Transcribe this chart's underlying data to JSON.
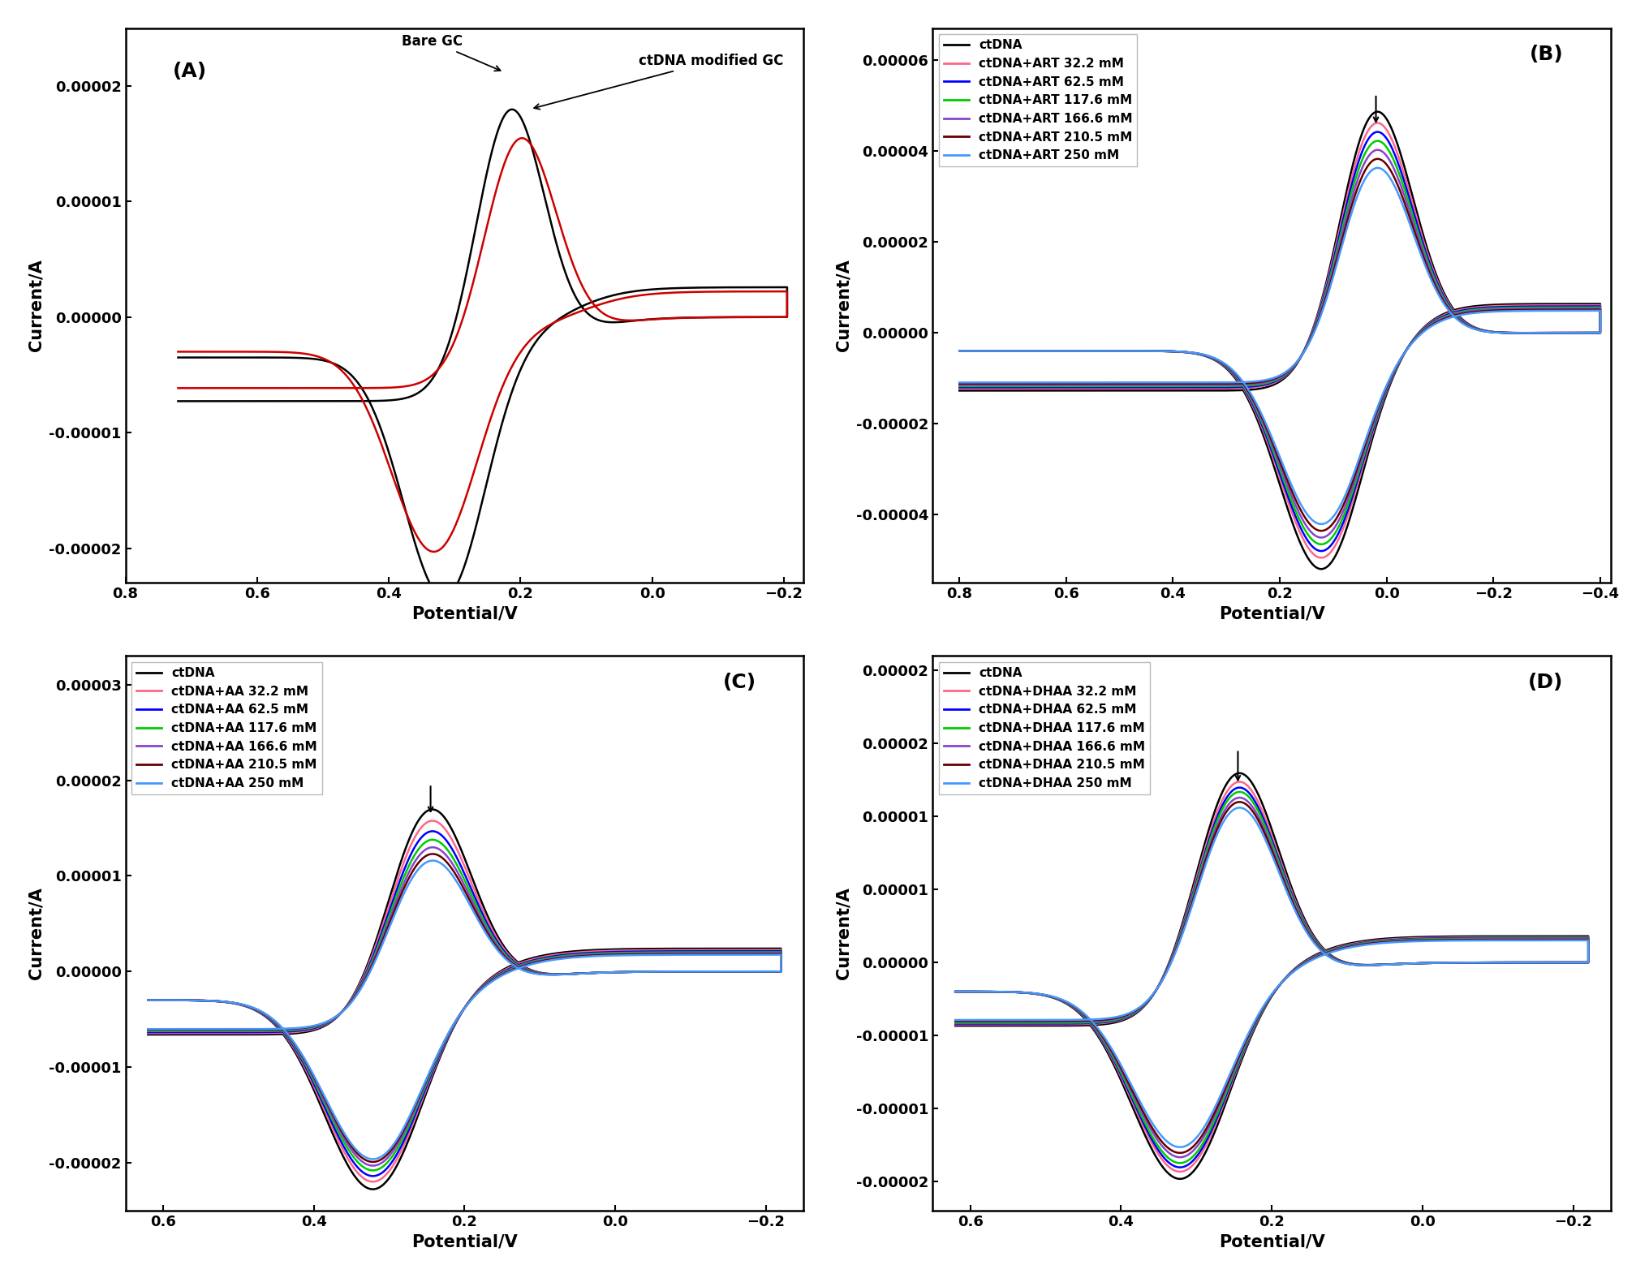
{
  "panel_A": {
    "label": "(A)",
    "xlabel": "Potential/V",
    "ylabel": "Current/A",
    "xlim": [
      0.78,
      -0.23
    ],
    "ylim": [
      -2.3e-05,
      2.5e-05
    ],
    "yticks": [
      -2e-05,
      -1e-05,
      0.0,
      1e-05,
      2e-05
    ],
    "xticks": [
      0.8,
      0.6,
      0.4,
      0.2,
      0.0,
      -0.2
    ],
    "annotation1": "Bare GC",
    "annotation2": "ctDNA modified GC"
  },
  "panel_B": {
    "label": "(B)",
    "xlabel": "Potential/V",
    "ylabel": "Current/A",
    "xlim": [
      0.85,
      -0.42
    ],
    "ylim": [
      -5.5e-05,
      6.7e-05
    ],
    "yticks": [
      -4e-05,
      -2e-05,
      0.0,
      2e-05,
      4e-05,
      6e-05
    ],
    "xticks": [
      0.8,
      0.6,
      0.4,
      0.2,
      0.0,
      -0.2,
      -0.4
    ],
    "legend_labels": [
      "ctDNA",
      "ctDNA+ART 32.2 mM",
      "ctDNA+ART 62.5 mM",
      "ctDNA+ART 117.6 mM",
      "ctDNA+ART 166.6 mM",
      "ctDNA+ART 210.5 mM",
      "ctDNA+ART 250 mM"
    ],
    "legend_colors": [
      "#000000",
      "#ff6688",
      "#0000ff",
      "#00cc00",
      "#8844cc",
      "#660000",
      "#4499ff"
    ]
  },
  "panel_C": {
    "label": "(C)",
    "xlabel": "Potential/V",
    "ylabel": "Current/A",
    "xlim": [
      0.65,
      -0.25
    ],
    "ylim": [
      -2.5e-05,
      3.3e-05
    ],
    "yticks": [
      -2e-05,
      -1e-05,
      0.0,
      1e-05,
      2e-05,
      3e-05
    ],
    "xticks": [
      0.6,
      0.4,
      0.2,
      0.0,
      -0.2
    ],
    "legend_labels": [
      "ctDNA",
      "ctDNA+AA 32.2 mM",
      "ctDNA+AA 62.5 mM",
      "ctDNA+AA 117.6 mM",
      "ctDNA+AA 166.6 mM",
      "ctDNA+AA 210.5 mM",
      "ctDNA+AA 250 mM"
    ],
    "legend_colors": [
      "#000000",
      "#ff6688",
      "#0000ff",
      "#00cc00",
      "#8844cc",
      "#660000",
      "#4499ff"
    ]
  },
  "panel_D": {
    "label": "(D)",
    "xlabel": "Potential/V",
    "ylabel": "Current/A",
    "xlim": [
      0.65,
      -0.25
    ],
    "ylim": [
      -1.7e-05,
      2.1e-05
    ],
    "yticks": [
      -1.5e-05,
      -1e-05,
      -5e-06,
      0.0,
      5e-06,
      1e-05,
      1.5e-05,
      2e-05
    ],
    "xticks": [
      0.6,
      0.4,
      0.2,
      0.0,
      -0.2
    ],
    "legend_labels": [
      "ctDNA",
      "ctDNA+DHAA 32.2 mM",
      "ctDNA+DHAA 62.5 mM",
      "ctDNA+DHAA 117.6 mM",
      "ctDNA+DHAA 166.6 mM",
      "ctDNA+DHAA 210.5 mM",
      "ctDNA+DHAA 250 mM"
    ],
    "legend_colors": [
      "#000000",
      "#ff6688",
      "#0000ff",
      "#00cc00",
      "#8844cc",
      "#660000",
      "#4499ff"
    ]
  },
  "background_color": "white",
  "tick_fontsize": 13,
  "label_fontsize": 15,
  "legend_fontsize": 11,
  "panel_label_fontsize": 18,
  "line_width": 1.8
}
